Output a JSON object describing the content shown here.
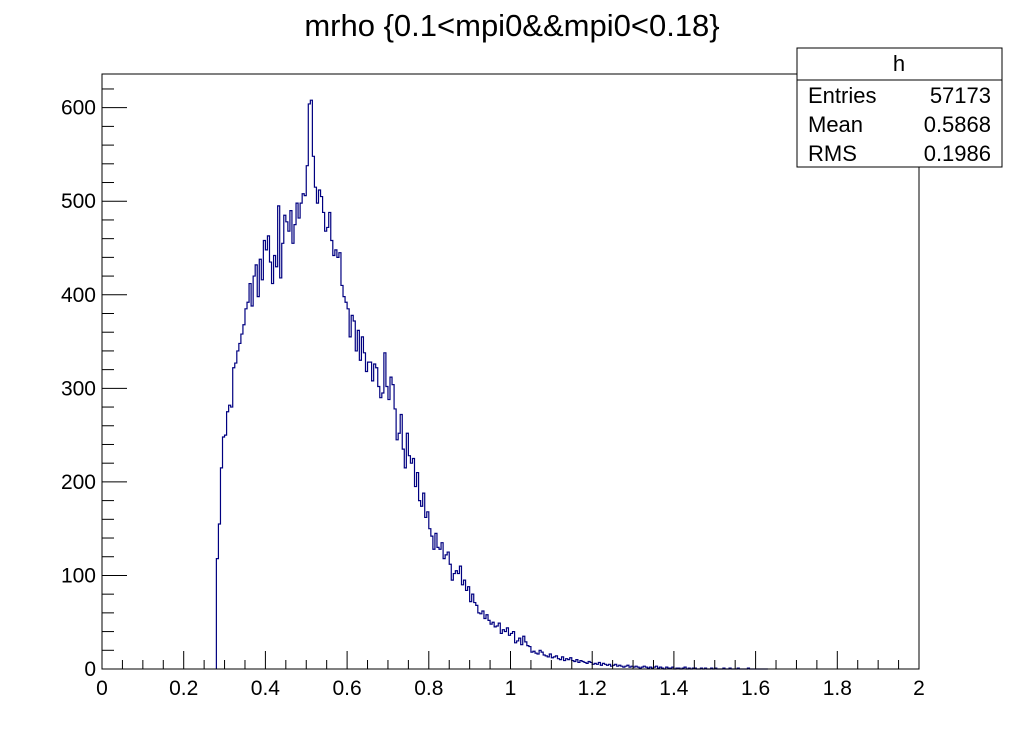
{
  "chart_data": {
    "type": "histogram",
    "title": "mrho {0.1<mpi0&&mpi0<0.18}",
    "xlabel": "",
    "ylabel": "",
    "xlim": [
      0,
      2
    ],
    "ylim": [
      0,
      636
    ],
    "x_ticks": [
      "0",
      "0.2",
      "0.4",
      "0.6",
      "0.8",
      "1",
      "1.2",
      "1.4",
      "1.6",
      "1.8",
      "2"
    ],
    "y_ticks": [
      "0",
      "100",
      "200",
      "300",
      "400",
      "500",
      "600"
    ],
    "grid": false,
    "line_color": "#000080",
    "bin_width": 0.005,
    "bins_start": 0.28,
    "series": [
      {
        "values": [
          118,
          155,
          215,
          248,
          250,
          275,
          282,
          280,
          322,
          327,
          340,
          348,
          358,
          368,
          385,
          392,
          412,
          388,
          420,
          432,
          398,
          438,
          416,
          458,
          448,
          463,
          435,
          412,
          442,
          430,
          495,
          418,
          455,
          485,
          478,
          468,
          490,
          455,
          475,
          498,
          482,
          498,
          508,
          506,
          538,
          604,
          608,
          548,
          515,
          498,
          512,
          505,
          488,
          468,
          472,
          488,
          458,
          442,
          448,
          440,
          445,
          410,
          398,
          392,
          385,
          355,
          378,
          372,
          340,
          362,
          330,
          355,
          338,
          318,
          328,
          328,
          308,
          326,
          322,
          302,
          290,
          295,
          338,
          302,
          288,
          312,
          304,
          278,
          245,
          252,
          272,
          235,
          215,
          252,
          228,
          220,
          225,
          195,
          210,
          180,
          174,
          188,
          162,
          168,
          150,
          142,
          128,
          145,
          130,
          128,
          135,
          118,
          122,
          125,
          112,
          95,
          102,
          105,
          102,
          110,
          90,
          95,
          84,
          88,
          72,
          80,
          71,
          68,
          60,
          59,
          62,
          54,
          58,
          52,
          48,
          50,
          45,
          46,
          49,
          38,
          42,
          40,
          44,
          36,
          38,
          40,
          28,
          30,
          33,
          26,
          35,
          29,
          25,
          24,
          18,
          19,
          17,
          16,
          20,
          18,
          15,
          14,
          13,
          16,
          12,
          13,
          14,
          11,
          10,
          13,
          9,
          11,
          10,
          12,
          9,
          8,
          10,
          7,
          9,
          8,
          7,
          6,
          8,
          7,
          5,
          6,
          5,
          7,
          4,
          6,
          5,
          4,
          5,
          3,
          4,
          5,
          3,
          4,
          3,
          2,
          3,
          4,
          2,
          3,
          2,
          3,
          2,
          1,
          2,
          3,
          2,
          1,
          2,
          1,
          2,
          3,
          1,
          2,
          1,
          0,
          2,
          1,
          1,
          2,
          0,
          1,
          1,
          0,
          1,
          2,
          0,
          1,
          0,
          1,
          1,
          0,
          0,
          1,
          0,
          1,
          0,
          0,
          1,
          0,
          1,
          0,
          0,
          0,
          1,
          0,
          0,
          1,
          0,
          0,
          0,
          1,
          0,
          0,
          0,
          0,
          1,
          0,
          0,
          0,
          0,
          0,
          0,
          0,
          0,
          0
        ]
      }
    ]
  },
  "stats_box": {
    "name": "h",
    "rows": [
      {
        "label": "Entries",
        "value": "57173"
      },
      {
        "label": "Mean",
        "value": "0.5868"
      },
      {
        "label": "RMS",
        "value": "0.1986"
      }
    ]
  }
}
